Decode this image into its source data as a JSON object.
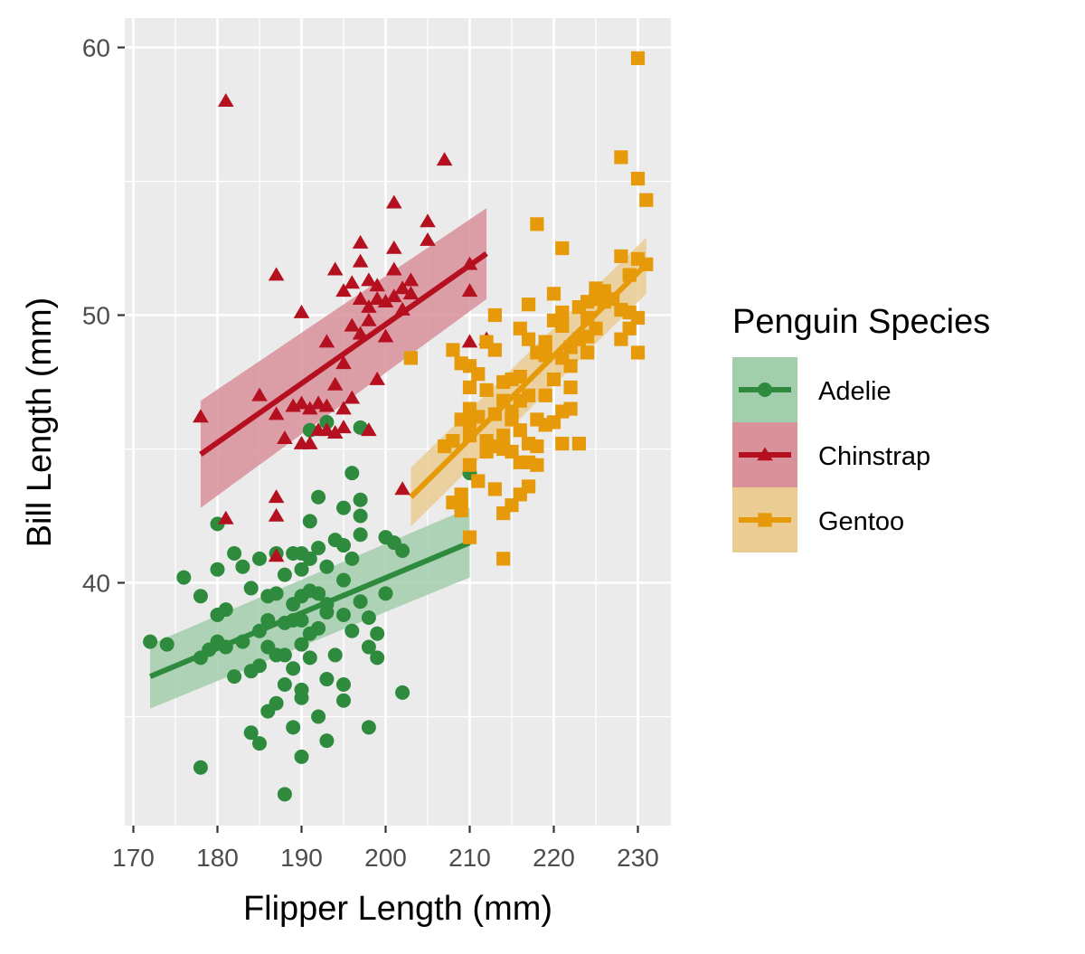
{
  "chart_data": {
    "type": "scatter",
    "title": "",
    "xlabel": "Flipper Length (mm)",
    "ylabel": "Bill Length (mm)",
    "xlim": [
      169,
      233
    ],
    "ylim": [
      31,
      61
    ],
    "x_ticks": [
      170,
      180,
      190,
      200,
      210,
      220,
      230
    ],
    "y_ticks": [
      40,
      50,
      60
    ],
    "grid": true,
    "legend": {
      "title": "Penguin Species",
      "placement": "right",
      "entries": [
        "Adelie",
        "Chinstrap",
        "Gentoo"
      ]
    },
    "series": [
      {
        "name": "Adelie",
        "marker": "circle",
        "color": "#2e8b3e",
        "band_color": "#a3ceac",
        "trend": {
          "x": [
            172,
            210
          ],
          "y": [
            36.5,
            41.5
          ],
          "ci_low": [
            35.3,
            40.2
          ],
          "ci_high": [
            37.7,
            42.8
          ]
        },
        "points": [
          [
            172,
            37.8
          ],
          [
            174,
            37.7
          ],
          [
            176,
            40.2
          ],
          [
            178,
            37.2
          ],
          [
            178,
            39.5
          ],
          [
            178,
            33.1
          ],
          [
            179,
            37.5
          ],
          [
            180,
            37.8
          ],
          [
            180,
            40.5
          ],
          [
            180,
            38.8
          ],
          [
            180,
            42.2
          ],
          [
            181,
            39.0
          ],
          [
            181,
            37.6
          ],
          [
            182,
            36.5
          ],
          [
            182,
            41.1
          ],
          [
            183,
            40.6
          ],
          [
            183,
            37.8
          ],
          [
            184,
            39.8
          ],
          [
            184,
            36.7
          ],
          [
            184,
            34.4
          ],
          [
            185,
            38.2
          ],
          [
            185,
            36.9
          ],
          [
            185,
            34.0
          ],
          [
            185,
            40.9
          ],
          [
            186,
            39.5
          ],
          [
            186,
            37.6
          ],
          [
            186,
            35.2
          ],
          [
            186,
            38.6
          ],
          [
            187,
            39.6
          ],
          [
            187,
            37.3
          ],
          [
            187,
            41.1
          ],
          [
            187,
            35.5
          ],
          [
            188,
            38.5
          ],
          [
            188,
            36.2
          ],
          [
            188,
            37.3
          ],
          [
            188,
            40.3
          ],
          [
            188,
            32.1
          ],
          [
            189,
            39.2
          ],
          [
            189,
            41.1
          ],
          [
            189,
            36.8
          ],
          [
            189,
            38.6
          ],
          [
            189,
            34.6
          ],
          [
            190,
            39.5
          ],
          [
            190,
            38.6
          ],
          [
            190,
            35.7
          ],
          [
            190,
            40.5
          ],
          [
            190,
            41.1
          ],
          [
            190,
            37.7
          ],
          [
            190,
            33.5
          ],
          [
            190,
            36.0
          ],
          [
            191,
            38.1
          ],
          [
            191,
            40.9
          ],
          [
            191,
            42.3
          ],
          [
            191,
            39.7
          ],
          [
            191,
            37.2
          ],
          [
            192,
            38.3
          ],
          [
            192,
            39.6
          ],
          [
            192,
            41.3
          ],
          [
            192,
            43.2
          ],
          [
            192,
            35.0
          ],
          [
            193,
            40.6
          ],
          [
            193,
            38.9
          ],
          [
            193,
            36.4
          ],
          [
            193,
            39.2
          ],
          [
            193,
            34.1
          ],
          [
            194,
            41.6
          ],
          [
            194,
            37.3
          ],
          [
            195,
            42.8
          ],
          [
            195,
            38.8
          ],
          [
            195,
            36.2
          ],
          [
            195,
            40.1
          ],
          [
            195,
            35.6
          ],
          [
            195,
            41.4
          ],
          [
            196,
            38.2
          ],
          [
            196,
            44.1
          ],
          [
            196,
            40.9
          ],
          [
            197,
            42.5
          ],
          [
            197,
            43.1
          ],
          [
            197,
            39.3
          ],
          [
            197,
            41.8
          ],
          [
            198,
            37.6
          ],
          [
            198,
            38.7
          ],
          [
            198,
            34.6
          ],
          [
            199,
            38.1
          ],
          [
            199,
            37.2
          ],
          [
            200,
            41.7
          ],
          [
            200,
            39.6
          ],
          [
            201,
            41.5
          ],
          [
            202,
            35.9
          ],
          [
            202,
            41.2
          ],
          [
            210,
            44.1
          ],
          [
            191,
            45.7
          ],
          [
            193,
            46.0
          ],
          [
            197,
            45.8
          ]
        ]
      },
      {
        "name": "Chinstrap",
        "marker": "triangle",
        "color": "#b5101f",
        "band_color": "#d9919a",
        "trend": {
          "x": [
            178,
            212
          ],
          "y": [
            44.8,
            52.3
          ],
          "ci_low": [
            42.8,
            50.6
          ],
          "ci_high": [
            46.8,
            54.0
          ]
        },
        "points": [
          [
            178,
            46.2
          ],
          [
            181,
            58.0
          ],
          [
            181,
            42.4
          ],
          [
            185,
            47.0
          ],
          [
            187,
            51.5
          ],
          [
            187,
            46.3
          ],
          [
            187,
            43.2
          ],
          [
            187,
            42.5
          ],
          [
            187,
            41.0
          ],
          [
            188,
            45.4
          ],
          [
            189,
            46.6
          ],
          [
            190,
            50.1
          ],
          [
            190,
            46.7
          ],
          [
            190,
            45.2
          ],
          [
            191,
            46.5
          ],
          [
            191,
            45.2
          ],
          [
            192,
            46.7
          ],
          [
            192,
            45.7
          ],
          [
            193,
            49.0
          ],
          [
            193,
            46.6
          ],
          [
            193,
            45.7
          ],
          [
            194,
            51.7
          ],
          [
            194,
            47.4
          ],
          [
            194,
            45.6
          ],
          [
            195,
            50.9
          ],
          [
            195,
            48.2
          ],
          [
            195,
            46.5
          ],
          [
            195,
            45.8
          ],
          [
            196,
            49.6
          ],
          [
            196,
            51.2
          ],
          [
            196,
            46.9
          ],
          [
            197,
            52.7
          ],
          [
            197,
            52.0
          ],
          [
            197,
            50.6
          ],
          [
            197,
            49.3
          ],
          [
            198,
            51.3
          ],
          [
            198,
            50.3
          ],
          [
            198,
            49.8
          ],
          [
            198,
            45.7
          ],
          [
            199,
            51.1
          ],
          [
            199,
            50.6
          ],
          [
            199,
            47.6
          ],
          [
            200,
            49.2
          ],
          [
            200,
            50.5
          ],
          [
            201,
            51.7
          ],
          [
            201,
            52.5
          ],
          [
            201,
            50.7
          ],
          [
            202,
            51.0
          ],
          [
            202,
            50.2
          ],
          [
            203,
            50.8
          ],
          [
            203,
            51.3
          ],
          [
            205,
            52.8
          ],
          [
            205,
            53.5
          ],
          [
            207,
            55.8
          ],
          [
            210,
            50.9
          ],
          [
            210,
            49.0
          ],
          [
            210,
            51.9
          ],
          [
            212,
            49.1
          ],
          [
            201,
            54.2
          ],
          [
            202,
            43.5
          ]
        ]
      },
      {
        "name": "Gentoo",
        "marker": "square",
        "color": "#e69a09",
        "band_color": "#ebcd93",
        "trend": {
          "x": [
            203,
            231
          ],
          "y": [
            43.2,
            51.9
          ],
          "ci_low": [
            42.1,
            50.8
          ],
          "ci_high": [
            44.3,
            52.9
          ]
        },
        "points": [
          [
            203,
            48.4
          ],
          [
            207,
            45.1
          ],
          [
            208,
            48.7
          ],
          [
            208,
            45.3
          ],
          [
            208,
            43.0
          ],
          [
            209,
            48.2
          ],
          [
            209,
            46.1
          ],
          [
            209,
            42.7
          ],
          [
            209,
            42.9
          ],
          [
            209,
            43.3
          ],
          [
            210,
            48.1
          ],
          [
            210,
            46.5
          ],
          [
            210,
            45.5
          ],
          [
            210,
            44.4
          ],
          [
            210,
            47.3
          ],
          [
            210,
            46.0
          ],
          [
            210,
            41.7
          ],
          [
            211,
            47.8
          ],
          [
            211,
            46.2
          ],
          [
            211,
            43.8
          ],
          [
            212,
            49.0
          ],
          [
            212,
            47.2
          ],
          [
            212,
            45.3
          ],
          [
            212,
            44.9
          ],
          [
            213,
            48.7
          ],
          [
            213,
            46.3
          ],
          [
            213,
            45.1
          ],
          [
            213,
            43.5
          ],
          [
            213,
            50.0
          ],
          [
            214,
            47.5
          ],
          [
            214,
            46.8
          ],
          [
            214,
            45.5
          ],
          [
            214,
            45.0
          ],
          [
            214,
            42.6
          ],
          [
            214,
            40.9
          ],
          [
            215,
            47.6
          ],
          [
            215,
            46.4
          ],
          [
            215,
            46.1
          ],
          [
            215,
            44.9
          ],
          [
            215,
            42.9
          ],
          [
            216,
            49.5
          ],
          [
            216,
            47.7
          ],
          [
            216,
            46.8
          ],
          [
            216,
            45.7
          ],
          [
            216,
            44.5
          ],
          [
            216,
            43.3
          ],
          [
            217,
            50.4
          ],
          [
            217,
            49.1
          ],
          [
            217,
            47.0
          ],
          [
            217,
            45.2
          ],
          [
            217,
            44.5
          ],
          [
            217,
            43.6
          ],
          [
            218,
            53.4
          ],
          [
            218,
            48.6
          ],
          [
            218,
            46.1
          ],
          [
            218,
            45.1
          ],
          [
            218,
            44.4
          ],
          [
            219,
            49.0
          ],
          [
            219,
            48.5
          ],
          [
            219,
            47.0
          ],
          [
            219,
            45.9
          ],
          [
            220,
            50.8
          ],
          [
            220,
            49.8
          ],
          [
            220,
            47.6
          ],
          [
            220,
            46.0
          ],
          [
            221,
            52.5
          ],
          [
            221,
            50.1
          ],
          [
            221,
            49.6
          ],
          [
            221,
            48.4
          ],
          [
            221,
            46.4
          ],
          [
            221,
            45.2
          ],
          [
            222,
            48.8
          ],
          [
            222,
            48.1
          ],
          [
            222,
            47.3
          ],
          [
            222,
            46.5
          ],
          [
            223,
            50.3
          ],
          [
            223,
            49.1
          ],
          [
            223,
            45.2
          ],
          [
            224,
            50.5
          ],
          [
            224,
            49.9
          ],
          [
            224,
            49.2
          ],
          [
            224,
            48.6
          ],
          [
            225,
            51.0
          ],
          [
            225,
            50.6
          ],
          [
            225,
            49.5
          ],
          [
            226,
            50.5
          ],
          [
            226,
            50.9
          ],
          [
            227,
            50.6
          ],
          [
            228,
            55.9
          ],
          [
            228,
            52.2
          ],
          [
            228,
            50.2
          ],
          [
            228,
            49.1
          ],
          [
            229,
            51.5
          ],
          [
            229,
            50.1
          ],
          [
            229,
            49.5
          ],
          [
            230,
            59.6
          ],
          [
            230,
            55.1
          ],
          [
            230,
            52.1
          ],
          [
            230,
            49.9
          ],
          [
            230,
            48.6
          ],
          [
            231,
            54.3
          ],
          [
            231,
            51.9
          ]
        ]
      }
    ]
  }
}
